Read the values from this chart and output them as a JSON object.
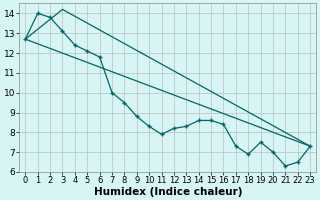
{
  "xlabel": "Humidex (Indice chaleur)",
  "bg_color": "#d8f5f5",
  "grid_color": "#c0c8c8",
  "line_color": "#006666",
  "xlim": [
    -0.5,
    23.5
  ],
  "ylim": [
    6,
    14.5
  ],
  "yticks": [
    6,
    7,
    8,
    9,
    10,
    11,
    12,
    13,
    14
  ],
  "xticks": [
    0,
    1,
    2,
    3,
    4,
    5,
    6,
    7,
    8,
    9,
    10,
    11,
    12,
    13,
    14,
    15,
    16,
    17,
    18,
    19,
    20,
    21,
    22,
    23
  ],
  "curve_x": [
    0,
    1,
    2,
    3,
    4,
    5,
    6,
    7,
    8,
    9,
    10,
    11,
    12,
    13,
    14,
    15,
    16,
    17,
    18,
    19,
    20,
    21,
    22,
    23
  ],
  "curve_y": [
    12.7,
    14.0,
    13.8,
    13.1,
    12.4,
    12.1,
    11.8,
    10.0,
    9.5,
    8.8,
    8.3,
    7.9,
    8.2,
    8.3,
    8.6,
    8.6,
    8.4,
    7.3,
    6.9,
    7.5,
    7.0,
    6.3,
    6.5,
    7.3
  ],
  "line1_x": [
    0,
    3,
    23
  ],
  "line1_y": [
    12.7,
    14.2,
    7.3
  ],
  "line2_x": [
    0,
    23
  ],
  "line2_y": [
    12.7,
    7.3
  ],
  "tick_fontsize": 6,
  "xlabel_fontsize": 7.5
}
